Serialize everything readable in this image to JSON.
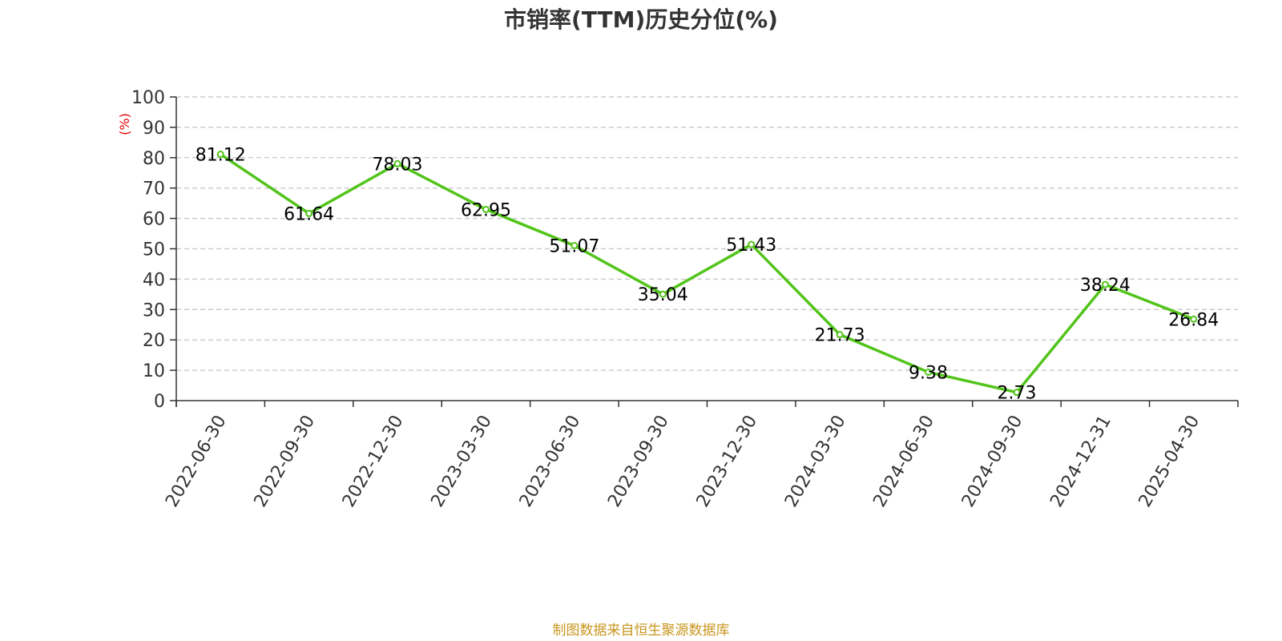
{
  "chart_data": {
    "type": "line",
    "title": "市销率(TTM)历史分位(%)",
    "xlabel": "",
    "ylabel": "(%)",
    "categories": [
      "2022-06-30",
      "2022-09-30",
      "2022-12-30",
      "2023-03-30",
      "2023-06-30",
      "2023-09-30",
      "2023-12-30",
      "2024-03-30",
      "2024-06-30",
      "2024-09-30",
      "2024-12-31",
      "2025-04-30"
    ],
    "values": [
      81.12,
      61.64,
      78.03,
      62.95,
      51.07,
      35.04,
      51.43,
      21.73,
      9.38,
      2.73,
      38.24,
      26.84
    ],
    "value_labels": [
      "81.12",
      "61.64",
      "78.03",
      "62.95",
      "51.07",
      "35.04",
      "51.43",
      "21.73",
      "9.38",
      "2.73",
      "38.24",
      "26.84"
    ],
    "ylim": [
      0,
      100
    ],
    "yticks": [
      "0",
      "10",
      "20",
      "30",
      "40",
      "50",
      "60",
      "70",
      "80",
      "90",
      "100"
    ],
    "grid": true,
    "colors": {
      "line": "#52c41a",
      "ylabel": "#e60000",
      "source": "#c8961e"
    }
  },
  "source_note": "制图数据来自恒生聚源数据库"
}
